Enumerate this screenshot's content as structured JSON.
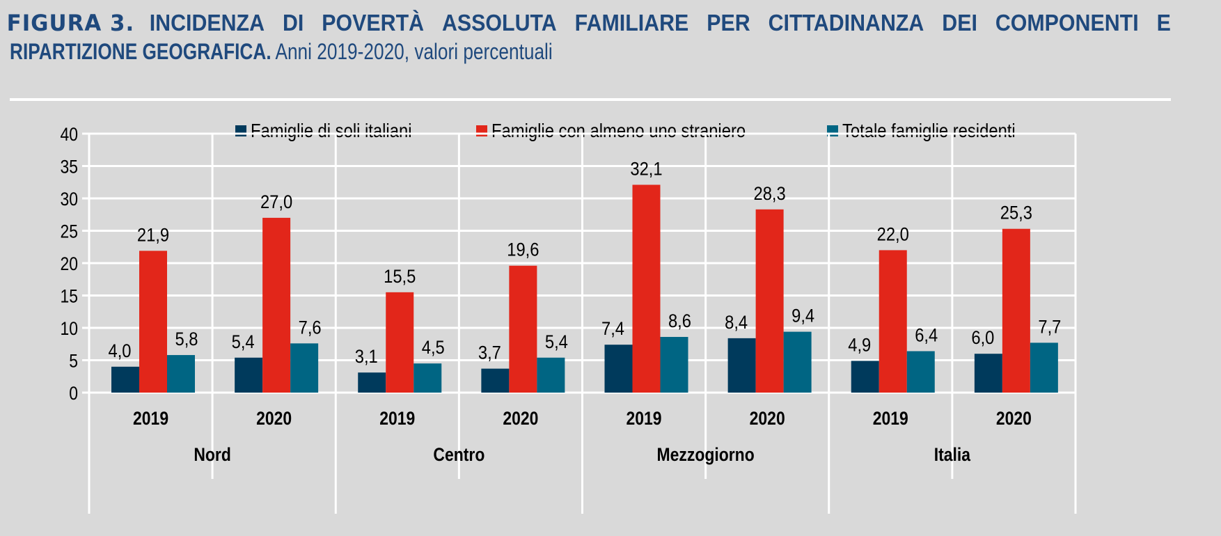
{
  "title": {
    "figure_label": "FIGURA 3.",
    "line1_words": [
      "INCIDENZA",
      "DI",
      "POVERTÀ",
      "ASSOLUTA",
      "FAMILIARE",
      "PER",
      "CITTADINANZA",
      "DEI",
      "COMPONENTI",
      "E"
    ],
    "line2_bold": "RIPARTIZIONE GEOGRAFICA.",
    "line2_regular": "Anni 2019-2020, valori percentuali"
  },
  "colors": {
    "background": "#d9d9d9",
    "title": "#1f497d",
    "grid": "#ffffff",
    "series": [
      "#003a5c",
      "#e2261a",
      "#006583"
    ]
  },
  "chart_data": {
    "type": "bar",
    "title": "Incidenza di povertà assoluta familiare per cittadinanza dei componenti e ripartizione geografica. Anni 2019-2020, valori percentuali",
    "xlabel": "",
    "ylabel": "",
    "ylim": [
      0,
      40
    ],
    "yticks": [
      0,
      5,
      10,
      15,
      20,
      25,
      30,
      35,
      40
    ],
    "grid": true,
    "legend_position": "top",
    "groups": [
      "Nord",
      "Centro",
      "Mezzogiorno",
      "Italia"
    ],
    "categories": [
      "2019",
      "2020",
      "2019",
      "2020",
      "2019",
      "2020",
      "2019",
      "2020"
    ],
    "category_group": [
      0,
      0,
      1,
      1,
      2,
      2,
      3,
      3
    ],
    "series": [
      {
        "name": "Famiglie di soli italiani",
        "values": [
          4.0,
          5.4,
          3.1,
          3.7,
          7.4,
          8.4,
          4.9,
          6.0
        ],
        "labels": [
          "4,0",
          "5,4",
          "3,1",
          "3,7",
          "7,4",
          "8,4",
          "4,9",
          "6,0"
        ]
      },
      {
        "name": "Famiglie con almeno uno straniero",
        "values": [
          21.9,
          27.0,
          15.5,
          19.6,
          32.1,
          28.3,
          22.0,
          25.3
        ],
        "labels": [
          "21,9",
          "27,0",
          "15,5",
          "19,6",
          "32,1",
          "28,3",
          "22,0",
          "25,3"
        ]
      },
      {
        "name": "Totale famiglie residenti",
        "values": [
          5.8,
          7.6,
          4.5,
          5.4,
          8.6,
          9.4,
          6.4,
          7.7
        ],
        "labels": [
          "5,8",
          "7,6",
          "4,5",
          "5,4",
          "8,6",
          "9,4",
          "6,4",
          "7,7"
        ]
      }
    ]
  }
}
